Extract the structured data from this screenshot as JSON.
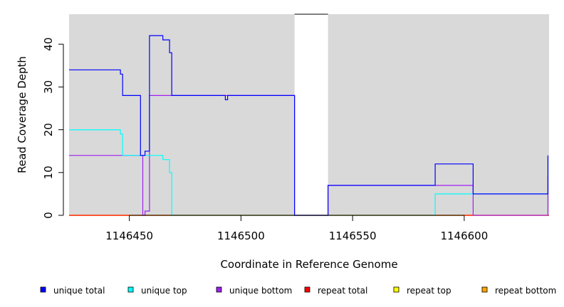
{
  "chart_data": {
    "type": "line",
    "title": "",
    "xlabel": "Coordinate in Reference Genome",
    "ylabel": "Read Coverage Depth",
    "xlim": [
      1146423,
      1146638
    ],
    "ylim": [
      0,
      47
    ],
    "x_ticks": [
      1146450,
      1146500,
      1146550,
      1146600
    ],
    "y_ticks": [
      0,
      10,
      20,
      30,
      40
    ],
    "grid": false,
    "background_color": "#d9d9d9",
    "gap_region": [
      1146524,
      1146539
    ],
    "legend_position": "bottom",
    "series": [
      {
        "name": "unique total",
        "color": "#0000ff",
        "points": [
          [
            1146423,
            34
          ],
          [
            1146446,
            34
          ],
          [
            1146446,
            33
          ],
          [
            1146447,
            33
          ],
          [
            1146447,
            28
          ],
          [
            1146455,
            28
          ],
          [
            1146455,
            14
          ],
          [
            1146457,
            14
          ],
          [
            1146457,
            15
          ],
          [
            1146459,
            15
          ],
          [
            1146459,
            42
          ],
          [
            1146465,
            42
          ],
          [
            1146465,
            41
          ],
          [
            1146468,
            41
          ],
          [
            1146468,
            38
          ],
          [
            1146469,
            38
          ],
          [
            1146469,
            28
          ],
          [
            1146493,
            28
          ],
          [
            1146493,
            27
          ],
          [
            1146494,
            27
          ],
          [
            1146494,
            28
          ],
          [
            1146524,
            28
          ],
          [
            1146524,
            0
          ],
          [
            1146539,
            0
          ],
          [
            1146539,
            7
          ],
          [
            1146587,
            7
          ],
          [
            1146587,
            12
          ],
          [
            1146604,
            12
          ],
          [
            1146604,
            5
          ],
          [
            1146637.5,
            5
          ],
          [
            1146637.5,
            14
          ]
        ]
      },
      {
        "name": "unique top",
        "color": "#00ffff",
        "points": [
          [
            1146423,
            20
          ],
          [
            1146446,
            20
          ],
          [
            1146446,
            19
          ],
          [
            1146447,
            19
          ],
          [
            1146447,
            14
          ],
          [
            1146465,
            14
          ],
          [
            1146465,
            13
          ],
          [
            1146468,
            13
          ],
          [
            1146468,
            10
          ],
          [
            1146469,
            10
          ],
          [
            1146469,
            0
          ],
          [
            1146587,
            0
          ],
          [
            1146587,
            5
          ],
          [
            1146637.5,
            5
          ]
        ]
      },
      {
        "name": "unique bottom",
        "color": "#a020f0",
        "points": [
          [
            1146423,
            14
          ],
          [
            1146456,
            14
          ],
          [
            1146456,
            0
          ],
          [
            1146457,
            0
          ],
          [
            1146457,
            1
          ],
          [
            1146459,
            1
          ],
          [
            1146459,
            28
          ],
          [
            1146524,
            28
          ],
          [
            1146524,
            0
          ],
          [
            1146539,
            0
          ],
          [
            1146539,
            7
          ],
          [
            1146604,
            7
          ],
          [
            1146604,
            0
          ],
          [
            1146637.5,
            0
          ],
          [
            1146637.5,
            9
          ]
        ]
      },
      {
        "name": "repeat total",
        "color": "#ff0000",
        "points": [
          [
            1146423,
            0
          ],
          [
            1146638,
            0
          ]
        ]
      },
      {
        "name": "repeat top",
        "color": "#ffff00",
        "points": [
          [
            1146423,
            0
          ],
          [
            1146638,
            0
          ]
        ]
      },
      {
        "name": "repeat bottom",
        "color": "#ffa500",
        "points": [
          [
            1146423,
            0
          ],
          [
            1146638,
            0
          ]
        ]
      }
    ]
  }
}
